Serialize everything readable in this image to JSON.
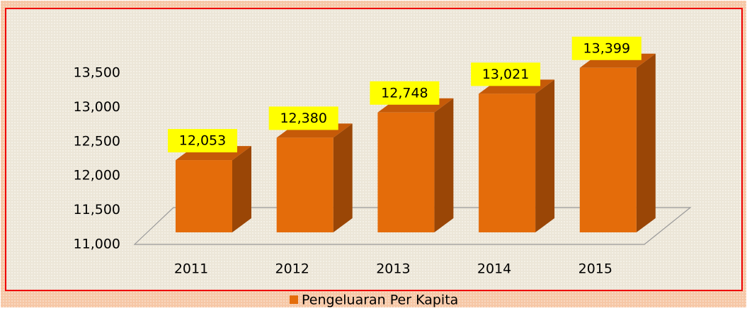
{
  "chart_data": {
    "type": "bar3d",
    "categories": [
      "2011",
      "2012",
      "2013",
      "2014",
      "2015"
    ],
    "series": [
      {
        "name": "Pengeluaran Per Kapita",
        "color": "#e46c0a",
        "values": [
          12053,
          12380,
          12748,
          13021,
          13399
        ],
        "value_labels": [
          "12,053",
          "12,380",
          "12,748",
          "13,021",
          "13,399"
        ]
      }
    ],
    "ylim": [
      11000,
      13500
    ],
    "yticks": [
      {
        "value": 11000,
        "label": "11,000"
      },
      {
        "value": 11500,
        "label": "11,500"
      },
      {
        "value": 12000,
        "label": "12,000"
      },
      {
        "value": 12500,
        "label": "12,500"
      },
      {
        "value": 13000,
        "label": "13,000"
      },
      {
        "value": 13500,
        "label": "13,500"
      }
    ],
    "legend": "bottom"
  }
}
